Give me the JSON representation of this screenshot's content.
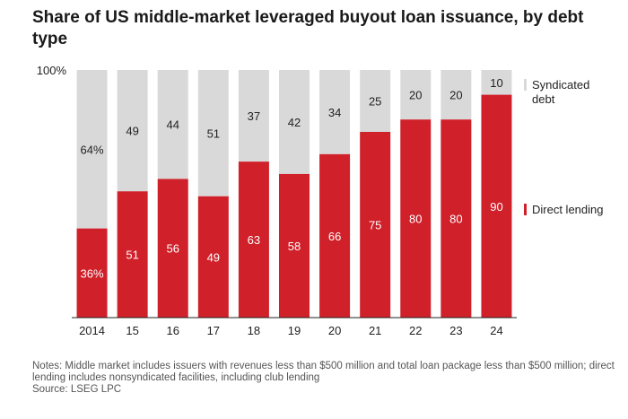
{
  "title": "Share of US middle-market leveraged buyout loan issuance, by debt type",
  "notes": {
    "line1": "Notes: Middle market includes issuers with revenues less than $500 million and total loan package less than $500 million; direct lending includes nonsyndicated facilities, including club lending",
    "source": "Source: LSEG LPC"
  },
  "colors": {
    "syndicated": "#d9d9d9",
    "direct": "#d0202a",
    "text_dark": "#222222",
    "text_light": "#ffffff"
  },
  "chart_data": {
    "type": "bar",
    "stacked": true,
    "title": "Share of US middle-market leveraged buyout loan issuance, by debt type",
    "categories": [
      "2014",
      "15",
      "16",
      "17",
      "18",
      "19",
      "20",
      "21",
      "22",
      "23",
      "24"
    ],
    "y_top_label": "100%",
    "ylim": [
      0,
      100
    ],
    "series": [
      {
        "name": "Direct lending",
        "values": [
          36,
          51,
          56,
          49,
          63,
          58,
          66,
          75,
          80,
          80,
          90
        ],
        "labels": [
          "36%",
          "51",
          "56",
          "49",
          "63",
          "58",
          "66",
          "75",
          "80",
          "80",
          "90"
        ]
      },
      {
        "name": "Syndicated debt",
        "values": [
          64,
          49,
          44,
          51,
          37,
          42,
          34,
          25,
          20,
          20,
          10
        ],
        "labels": [
          "64%",
          "49",
          "44",
          "51",
          "37",
          "42",
          "34",
          "25",
          "20",
          "20",
          "10"
        ]
      }
    ],
    "legend": [
      {
        "lines": [
          "Syndicated",
          "debt"
        ]
      },
      {
        "lines": [
          "Direct lending"
        ]
      }
    ],
    "legend_position": "right"
  }
}
